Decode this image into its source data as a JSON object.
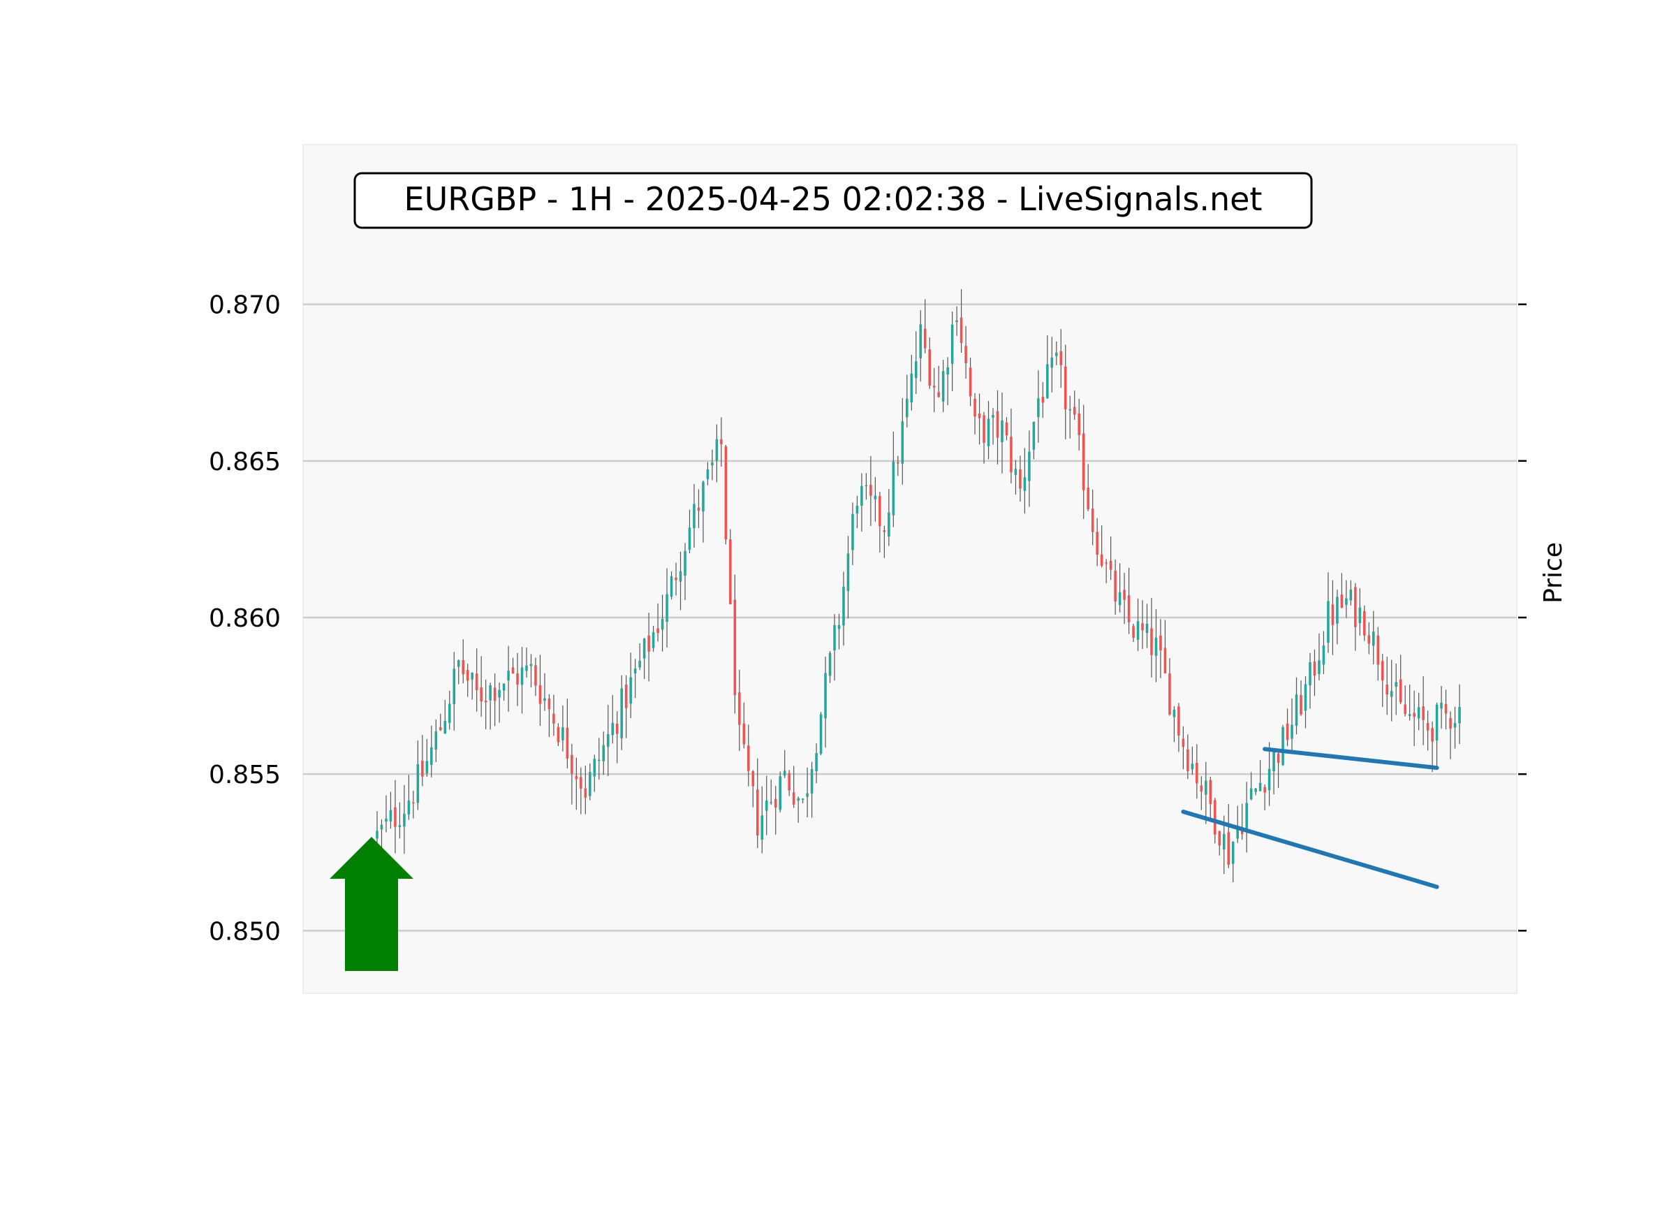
{
  "chart_data": {
    "type": "candlestick",
    "title": "EURGBP - 1H - 2025-04-25 02:02:38 - LiveSignals.net",
    "ylabel": "Price",
    "y_axis_position": "right-label, left-ticks",
    "ylim": [
      0.848,
      0.8751
    ],
    "yticks": [
      0.85,
      0.855,
      0.86,
      0.865,
      0.87
    ],
    "ytick_labels": [
      "0.850",
      "0.855",
      "0.860",
      "0.865",
      "0.870"
    ],
    "grid": "horizontal",
    "candle_count": 240,
    "colors": {
      "up": "#26a69a",
      "down": "#ef5350",
      "wick": "#555555",
      "grid": "#cccccc",
      "background": "#f8f8f8",
      "arrow": "#008000",
      "trendline": "#1f77b4"
    },
    "path_anchors": [
      [
        0,
        0.853
      ],
      [
        6,
        0.854
      ],
      [
        10,
        0.855
      ],
      [
        14,
        0.8565
      ],
      [
        18,
        0.8585
      ],
      [
        22,
        0.8575
      ],
      [
        28,
        0.858
      ],
      [
        34,
        0.8583
      ],
      [
        40,
        0.8565
      ],
      [
        46,
        0.8545
      ],
      [
        52,
        0.8565
      ],
      [
        58,
        0.8585
      ],
      [
        64,
        0.8605
      ],
      [
        68,
        0.8625
      ],
      [
        72,
        0.864
      ],
      [
        76,
        0.8655
      ],
      [
        78,
        0.86
      ],
      [
        80,
        0.856
      ],
      [
        84,
        0.8535
      ],
      [
        90,
        0.855
      ],
      [
        94,
        0.854
      ],
      [
        98,
        0.857
      ],
      [
        102,
        0.86
      ],
      [
        106,
        0.864
      ],
      [
        112,
        0.863
      ],
      [
        116,
        0.866
      ],
      [
        120,
        0.869
      ],
      [
        124,
        0.867
      ],
      [
        128,
        0.87
      ],
      [
        132,
        0.866
      ],
      [
        138,
        0.866
      ],
      [
        142,
        0.864
      ],
      [
        146,
        0.867
      ],
      [
        150,
        0.868
      ],
      [
        154,
        0.866
      ],
      [
        158,
        0.863
      ],
      [
        162,
        0.861
      ],
      [
        166,
        0.8598
      ],
      [
        172,
        0.859
      ],
      [
        178,
        0.856
      ],
      [
        184,
        0.854
      ],
      [
        188,
        0.8525
      ],
      [
        192,
        0.854
      ],
      [
        196,
        0.855
      ],
      [
        200,
        0.856
      ],
      [
        206,
        0.858
      ],
      [
        210,
        0.86
      ],
      [
        214,
        0.8605
      ],
      [
        218,
        0.86
      ],
      [
        222,
        0.8585
      ],
      [
        226,
        0.857
      ],
      [
        232,
        0.8565
      ],
      [
        238,
        0.857
      ],
      [
        239,
        0.857
      ]
    ],
    "drawn_range_note": "",
    "annotations": [
      {
        "type": "arrow-up",
        "color": "#008000",
        "near_price": 0.8515
      },
      {
        "type": "trendline",
        "color": "#1f77b4",
        "from": [
          196,
          0.8558
        ],
        "to": [
          234,
          0.8552
        ]
      },
      {
        "type": "trendline",
        "color": "#1f77b4",
        "from": [
          178,
          0.8538
        ],
        "to": [
          234,
          0.8514
        ]
      }
    ]
  }
}
